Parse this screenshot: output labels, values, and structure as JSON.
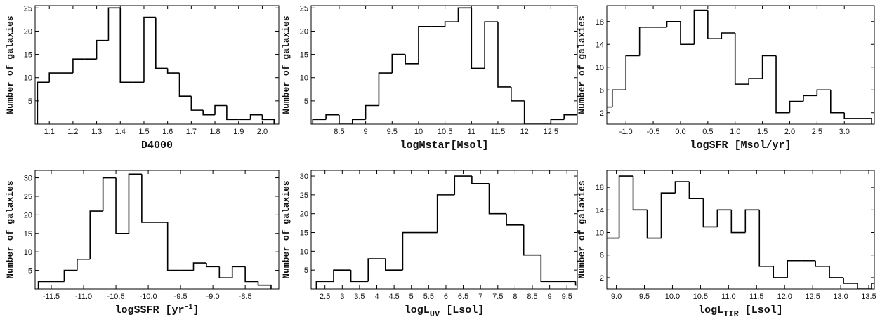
{
  "chart_data": [
    {
      "type": "histogram",
      "ylabel": "Number of galaxies",
      "xlabel": "D4000",
      "color": "#000000",
      "bins": [
        1.05,
        1.1,
        1.15,
        1.2,
        1.25,
        1.3,
        1.35,
        1.4,
        1.45,
        1.5,
        1.55,
        1.6,
        1.65,
        1.7,
        1.75,
        1.8,
        1.85,
        1.9,
        1.95,
        2.0,
        2.05
      ],
      "counts": [
        9,
        11,
        11,
        14,
        14,
        18,
        25,
        9,
        9,
        23,
        12,
        11,
        6,
        3,
        2,
        4,
        1,
        1,
        2,
        1
      ],
      "xlim": [
        1.04,
        2.07
      ],
      "ylim": [
        0,
        25.5
      ],
      "xticks": [
        1.1,
        1.2,
        1.3,
        1.4,
        1.5,
        1.6,
        1.7,
        1.8,
        1.9,
        {
          "value": 2,
          "label": "2.0"
        }
      ],
      "yticks": [
        5,
        10,
        15,
        20,
        25
      ]
    },
    {
      "type": "histogram",
      "ylabel": "Number of galaxies",
      "xlabel": "logMstar[Msol]",
      "color": "#000000",
      "bins": [
        8.0,
        8.25,
        8.5,
        8.75,
        9.0,
        9.25,
        9.5,
        9.75,
        10.0,
        10.25,
        10.5,
        10.75,
        11.0,
        11.25,
        11.5,
        11.75,
        12.0,
        12.25,
        12.5,
        12.75,
        13.0
      ],
      "counts": [
        1,
        2,
        0,
        1,
        4,
        11,
        15,
        13,
        21,
        21,
        22,
        25,
        12,
        22,
        8,
        5,
        0,
        0,
        1,
        2
      ],
      "xlim": [
        7.97,
        13.0
      ],
      "ylim": [
        0,
        25.5
      ],
      "xticks": [
        8.5,
        9,
        9.5,
        10,
        10.5,
        11,
        11.5,
        12,
        12.5
      ],
      "yticks": [
        5,
        10,
        15,
        20,
        25
      ]
    },
    {
      "type": "histogram",
      "ylabel": "Number of galaxies",
      "xlabel": "logSFR [Msol/yr]",
      "color": "#000000",
      "bins": [
        -1.5,
        -1.25,
        -1.0,
        -0.75,
        -0.5,
        -0.25,
        0.0,
        0.25,
        0.5,
        0.75,
        1.0,
        1.25,
        1.5,
        1.75,
        2.0,
        2.25,
        2.5,
        2.75,
        3.0,
        3.25,
        3.5
      ],
      "counts": [
        3,
        6,
        12,
        17,
        17,
        18,
        14,
        20,
        15,
        16,
        7,
        8,
        12,
        2,
        4,
        5,
        6,
        2,
        1,
        1
      ],
      "xlim": [
        -1.35,
        3.55
      ],
      "ylim": [
        0,
        20.8
      ],
      "xticks": [
        {
          "value": -1,
          "label": "-1.0"
        },
        -0.5,
        {
          "value": 0,
          "label": "0.0"
        },
        0.5,
        {
          "value": 1,
          "label": "1.0"
        },
        1.5,
        {
          "value": 2,
          "label": "2.0"
        },
        2.5,
        {
          "value": 3,
          "label": "3.0"
        }
      ],
      "yticks": [
        2,
        6,
        10,
        14,
        18
      ]
    },
    {
      "type": "histogram",
      "ylabel": "Number of galaxies",
      "xlabel": [
        {
          "text": "logSSFR [yr"
        },
        {
          "text": "-1",
          "shift": "super"
        },
        {
          "text": "]"
        }
      ],
      "color": "#000000",
      "bins": [
        -11.7,
        -11.5,
        -11.3,
        -11.1,
        -10.9,
        -10.7,
        -10.5,
        -10.3,
        -10.1,
        -9.9,
        -9.7,
        -9.5,
        -9.3,
        -9.1,
        -8.9,
        -8.7,
        -8.5,
        -8.3,
        -8.1
      ],
      "counts": [
        2,
        2,
        5,
        8,
        21,
        30,
        15,
        31,
        18,
        18,
        5,
        5,
        7,
        6,
        3,
        6,
        2,
        1
      ],
      "xlim": [
        -11.75,
        -7.98
      ],
      "ylim": [
        0,
        32
      ],
      "xticks": [
        -11.5,
        {
          "value": -11,
          "label": "-11.0"
        },
        -10.5,
        {
          "value": -10,
          "label": "-10.0"
        },
        -9.5,
        {
          "value": -9,
          "label": "-9.0"
        },
        -8.5
      ],
      "yticks": [
        5,
        10,
        15,
        20,
        25,
        30
      ]
    },
    {
      "type": "histogram",
      "ylabel": "Number of galaxies",
      "xlabel": [
        {
          "text": "logL"
        },
        {
          "text": "UV",
          "shift": "sub"
        },
        {
          "text": " [Lsol]"
        }
      ],
      "color": "#000000",
      "bins": [
        2.25,
        2.75,
        3.25,
        3.75,
        4.25,
        4.75,
        5.25,
        5.75,
        6.25,
        6.75,
        7.25,
        7.75,
        8.25,
        8.75,
        9.25,
        9.75,
        10.25
      ],
      "counts": [
        2,
        5,
        2,
        8,
        5,
        15,
        15,
        25,
        30,
        28,
        20,
        17,
        9,
        2,
        2,
        1
      ],
      "xlim": [
        2.1,
        9.8
      ],
      "ylim": [
        0,
        31.5
      ],
      "xticks": [
        2.5,
        3,
        3.5,
        4,
        4.5,
        5,
        5.5,
        6,
        6.5,
        7,
        7.5,
        8,
        8.5,
        9,
        9.5
      ],
      "yticks": [
        5,
        10,
        15,
        20,
        25,
        30
      ]
    },
    {
      "type": "histogram",
      "ylabel": "Number of galaxies",
      "xlabel": [
        {
          "text": "logL"
        },
        {
          "text": "TIR",
          "shift": "sub"
        },
        {
          "text": " [Lsol]"
        }
      ],
      "color": "#000000",
      "bins": [
        8.8,
        9.05,
        9.3,
        9.55,
        9.8,
        10.05,
        10.3,
        10.55,
        10.8,
        11.05,
        11.3,
        11.55,
        11.8,
        12.05,
        12.3,
        12.55,
        12.8,
        13.05,
        13.3,
        13.55,
        13.8
      ],
      "counts": [
        9,
        20,
        14,
        9,
        17,
        19,
        16,
        11,
        14,
        10,
        14,
        4,
        2,
        5,
        5,
        4,
        2,
        1,
        0,
        1
      ],
      "xlim": [
        8.83,
        13.6
      ],
      "ylim": [
        0,
        21
      ],
      "xticks": [
        {
          "value": 9,
          "label": "9.0"
        },
        9.5,
        {
          "value": 10,
          "label": "10.0"
        },
        10.5,
        {
          "value": 11,
          "label": "11.0"
        },
        11.5,
        {
          "value": 12,
          "label": "12.0"
        },
        12.5,
        {
          "value": 13,
          "label": "13.0"
        },
        13.5
      ],
      "yticks": [
        2,
        6,
        10,
        14,
        18
      ]
    }
  ]
}
